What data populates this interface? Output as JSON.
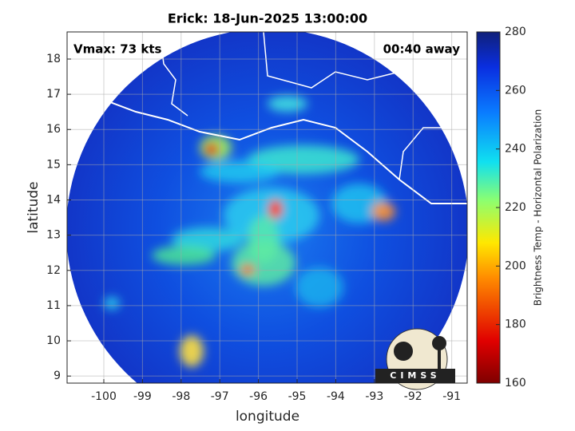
{
  "chart_data": {
    "type": "map",
    "title": "Erick: 18-Jun-2025 13:00:00",
    "annotations": [
      "Vmax: 73 kts",
      "00:40 away"
    ],
    "xlabel": "longitude",
    "ylabel": "latitude",
    "xlim": [
      -100.95,
      -90.6
    ],
    "ylim": [
      8.8,
      18.77
    ],
    "xticks": [
      -100,
      -99,
      -98,
      -97,
      -96,
      -95,
      -94,
      -93,
      -92,
      -91
    ],
    "yticks": [
      9,
      10,
      11,
      12,
      13,
      14,
      15,
      16,
      17,
      18
    ],
    "grid": true,
    "colorbar": {
      "label": "Brightness Temp - Horizontal Polarization",
      "lim": [
        160,
        280
      ],
      "ticks": [
        160,
        180,
        200,
        220,
        240,
        260,
        280
      ]
    },
    "logo": "CIMSS"
  }
}
